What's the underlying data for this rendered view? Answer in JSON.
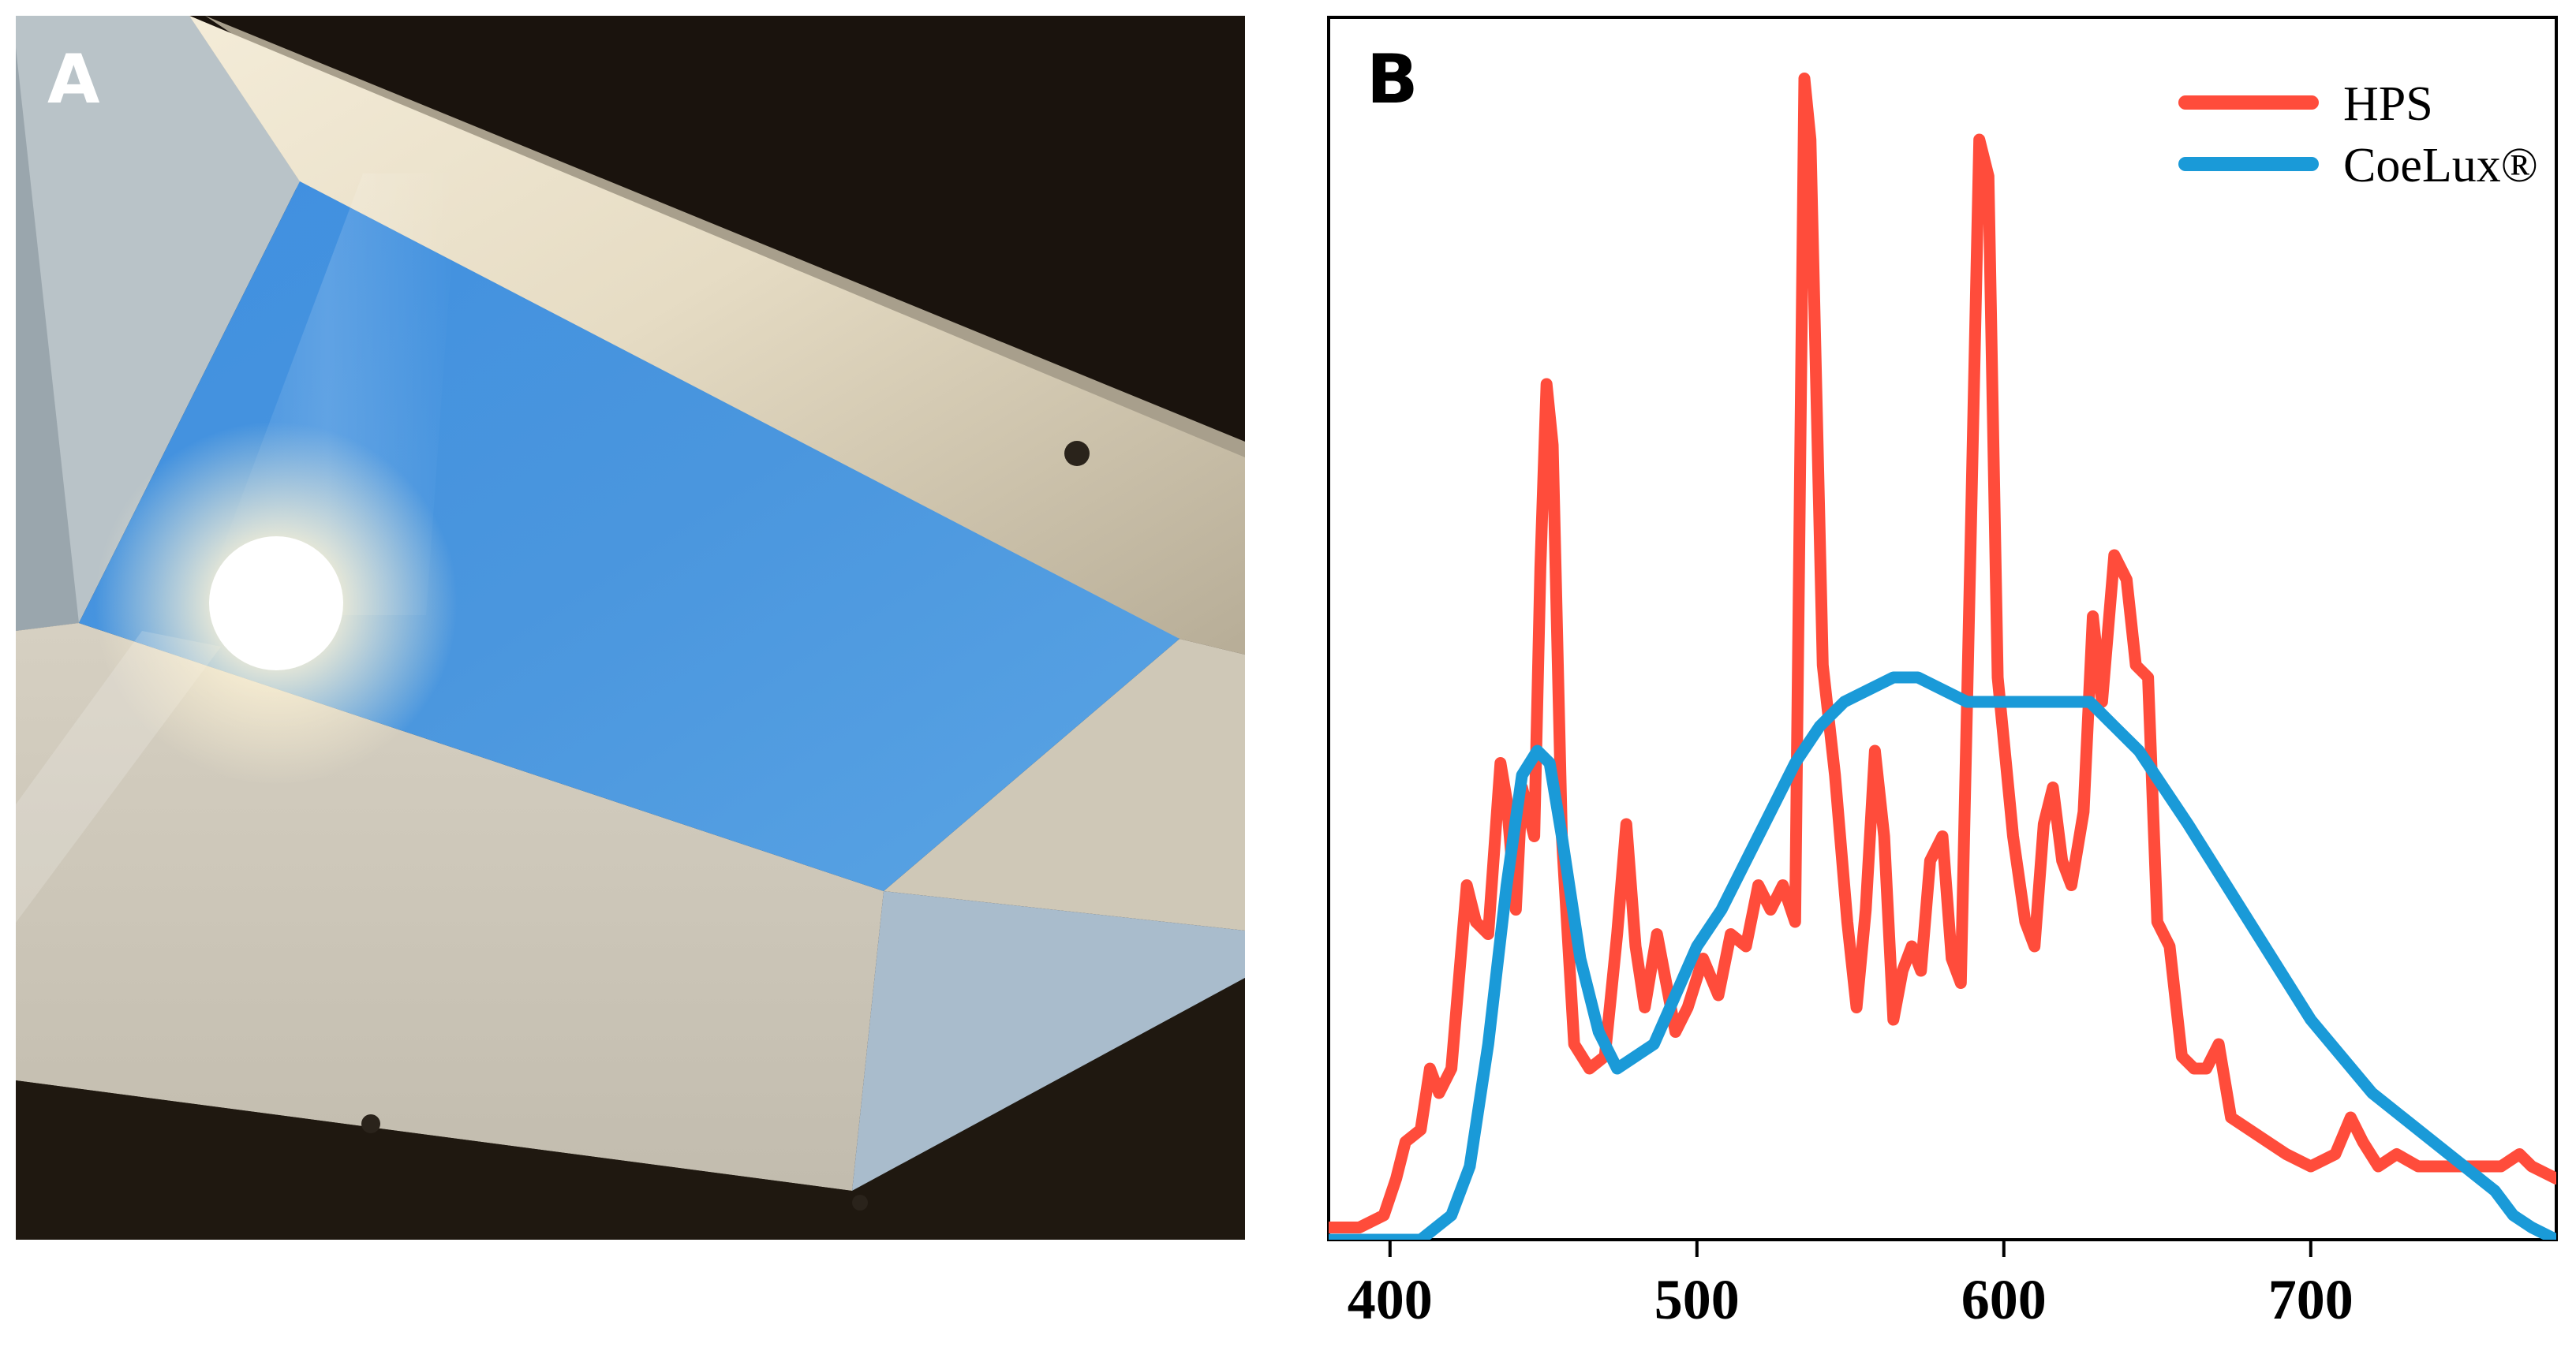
{
  "panels": {
    "a": {
      "label": "A"
    },
    "b": {
      "label": "B"
    }
  },
  "colors": {
    "hps": "#ff4c3b",
    "coelux": "#1a9ad8",
    "sky": "#4a95de",
    "frame_dark": "#1a130d"
  },
  "chart_data": {
    "type": "line",
    "title": "",
    "xlabel": "",
    "ylabel": "",
    "xlim": [
      380,
      780
    ],
    "ylim": [
      0,
      1.0
    ],
    "x_ticks": [
      400,
      500,
      600,
      700
    ],
    "grid": false,
    "legend_position": "top-right",
    "series": [
      {
        "name": "HPS",
        "color": "#ff4c3b",
        "points": [
          [
            380,
            0.01
          ],
          [
            390,
            0.01
          ],
          [
            398,
            0.02
          ],
          [
            402,
            0.05
          ],
          [
            405,
            0.08
          ],
          [
            410,
            0.09
          ],
          [
            413,
            0.14
          ],
          [
            416,
            0.12
          ],
          [
            420,
            0.14
          ],
          [
            425,
            0.29
          ],
          [
            428,
            0.26
          ],
          [
            432,
            0.25
          ],
          [
            436,
            0.39
          ],
          [
            438,
            0.36
          ],
          [
            441,
            0.27
          ],
          [
            443,
            0.37
          ],
          [
            447,
            0.33
          ],
          [
            449,
            0.55
          ],
          [
            451,
            0.7
          ],
          [
            453,
            0.65
          ],
          [
            456,
            0.33
          ],
          [
            460,
            0.16
          ],
          [
            465,
            0.14
          ],
          [
            470,
            0.15
          ],
          [
            474,
            0.25
          ],
          [
            477,
            0.34
          ],
          [
            480,
            0.24
          ],
          [
            483,
            0.19
          ],
          [
            487,
            0.25
          ],
          [
            490,
            0.21
          ],
          [
            493,
            0.17
          ],
          [
            497,
            0.19
          ],
          [
            502,
            0.23
          ],
          [
            507,
            0.2
          ],
          [
            511,
            0.25
          ],
          [
            516,
            0.24
          ],
          [
            520,
            0.29
          ],
          [
            524,
            0.27
          ],
          [
            528,
            0.29
          ],
          [
            532,
            0.26
          ],
          [
            535,
            0.95
          ],
          [
            537,
            0.9
          ],
          [
            541,
            0.47
          ],
          [
            545,
            0.38
          ],
          [
            549,
            0.26
          ],
          [
            552,
            0.19
          ],
          [
            555,
            0.27
          ],
          [
            558,
            0.4
          ],
          [
            561,
            0.33
          ],
          [
            564,
            0.18
          ],
          [
            567,
            0.22
          ],
          [
            570,
            0.24
          ],
          [
            573,
            0.22
          ],
          [
            576,
            0.31
          ],
          [
            580,
            0.33
          ],
          [
            583,
            0.23
          ],
          [
            586,
            0.21
          ],
          [
            589,
            0.55
          ],
          [
            592,
            0.9
          ],
          [
            595,
            0.87
          ],
          [
            598,
            0.46
          ],
          [
            603,
            0.33
          ],
          [
            607,
            0.26
          ],
          [
            610,
            0.24
          ],
          [
            613,
            0.34
          ],
          [
            616,
            0.37
          ],
          [
            619,
            0.31
          ],
          [
            622,
            0.29
          ],
          [
            626,
            0.35
          ],
          [
            629,
            0.51
          ],
          [
            632,
            0.44
          ],
          [
            636,
            0.56
          ],
          [
            640,
            0.54
          ],
          [
            643,
            0.47
          ],
          [
            647,
            0.46
          ],
          [
            650,
            0.26
          ],
          [
            654,
            0.24
          ],
          [
            658,
            0.15
          ],
          [
            662,
            0.14
          ],
          [
            666,
            0.14
          ],
          [
            670,
            0.16
          ],
          [
            674,
            0.1
          ],
          [
            680,
            0.09
          ],
          [
            686,
            0.08
          ],
          [
            692,
            0.07
          ],
          [
            700,
            0.06
          ],
          [
            708,
            0.07
          ],
          [
            713,
            0.1
          ],
          [
            717,
            0.08
          ],
          [
            722,
            0.06
          ],
          [
            728,
            0.07
          ],
          [
            735,
            0.06
          ],
          [
            745,
            0.06
          ],
          [
            755,
            0.06
          ],
          [
            762,
            0.06
          ],
          [
            768,
            0.07
          ],
          [
            772,
            0.06
          ],
          [
            780,
            0.05
          ]
        ]
      },
      {
        "name": "CoeLux®",
        "color": "#1a9ad8",
        "points": [
          [
            380,
            0.0
          ],
          [
            410,
            0.0
          ],
          [
            415,
            0.01
          ],
          [
            420,
            0.02
          ],
          [
            426,
            0.06
          ],
          [
            432,
            0.16
          ],
          [
            438,
            0.29
          ],
          [
            443,
            0.38
          ],
          [
            448,
            0.4
          ],
          [
            452,
            0.39
          ],
          [
            456,
            0.33
          ],
          [
            462,
            0.23
          ],
          [
            468,
            0.17
          ],
          [
            474,
            0.14
          ],
          [
            480,
            0.15
          ],
          [
            486,
            0.16
          ],
          [
            493,
            0.2
          ],
          [
            500,
            0.24
          ],
          [
            508,
            0.27
          ],
          [
            516,
            0.31
          ],
          [
            524,
            0.35
          ],
          [
            532,
            0.39
          ],
          [
            540,
            0.42
          ],
          [
            548,
            0.44
          ],
          [
            556,
            0.45
          ],
          [
            564,
            0.46
          ],
          [
            572,
            0.46
          ],
          [
            580,
            0.45
          ],
          [
            588,
            0.44
          ],
          [
            596,
            0.44
          ],
          [
            604,
            0.44
          ],
          [
            612,
            0.44
          ],
          [
            620,
            0.44
          ],
          [
            628,
            0.44
          ],
          [
            636,
            0.42
          ],
          [
            644,
            0.4
          ],
          [
            652,
            0.37
          ],
          [
            660,
            0.34
          ],
          [
            670,
            0.3
          ],
          [
            680,
            0.26
          ],
          [
            690,
            0.22
          ],
          [
            700,
            0.18
          ],
          [
            710,
            0.15
          ],
          [
            720,
            0.12
          ],
          [
            730,
            0.1
          ],
          [
            740,
            0.08
          ],
          [
            750,
            0.06
          ],
          [
            760,
            0.04
          ],
          [
            766,
            0.02
          ],
          [
            772,
            0.01
          ],
          [
            780,
            0.0
          ]
        ]
      }
    ]
  }
}
